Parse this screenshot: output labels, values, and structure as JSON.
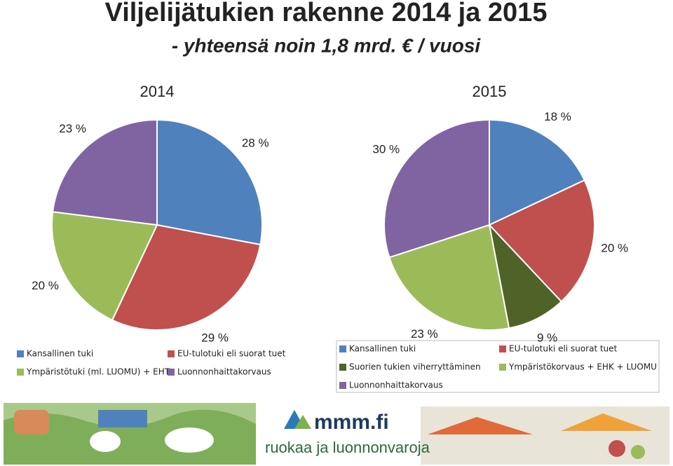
{
  "header": {
    "title": "Viljelijätukien rakenne 2014 ja 2015",
    "subtitle": "- yhteensä noin 1,8 mrd. € / vuosi"
  },
  "chart_data": [
    {
      "type": "pie",
      "title": "2014",
      "categories": [
        "Kansallinen tuki",
        "EU-tulotuki eli suorat tuet",
        "Ympäristötuki (ml. LUOMU) + EHT",
        "Luonnonhaittakorvaus"
      ],
      "values": [
        28,
        29,
        20,
        23
      ],
      "value_labels": [
        "28 %",
        "29 %",
        "20 %",
        "23 %"
      ],
      "colors": [
        "#4f81bd",
        "#c0504d",
        "#9bbb59",
        "#8064a2"
      ]
    },
    {
      "type": "pie",
      "title": "2015",
      "categories": [
        "Kansallinen tuki",
        "EU-tulotuki eli suorat tuet",
        "Suorien tukien viherryttäminen",
        "Ympäristökorvaus + EHK + LUOMU",
        "Luonnonhaittakorvaus"
      ],
      "values": [
        18,
        20,
        9,
        23,
        30
      ],
      "value_labels": [
        "18 %",
        "20 %",
        "9 %",
        "23 %",
        "30 %"
      ],
      "colors": [
        "#4f81bd",
        "#c0504d",
        "#4f6228",
        "#9bbb59",
        "#8064a2"
      ]
    }
  ],
  "footer": {
    "logo": "mmm.fi",
    "slogan": "ruokaa ja luonnonvaroja"
  }
}
